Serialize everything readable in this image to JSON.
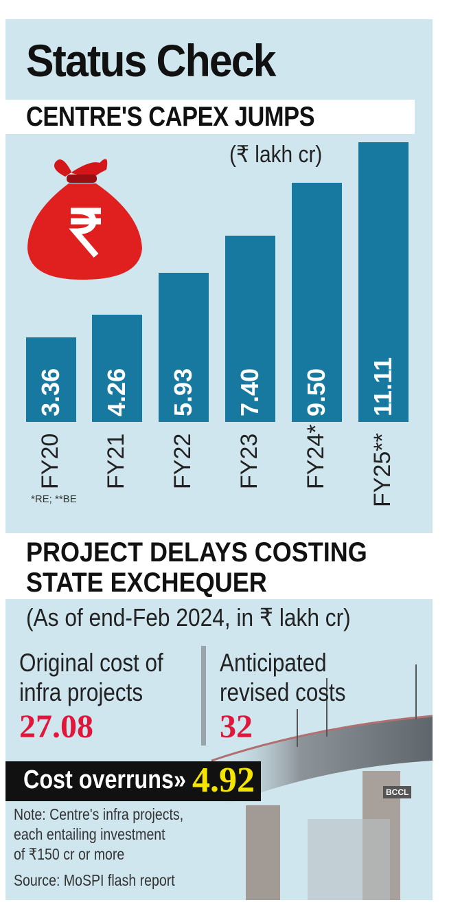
{
  "header": {
    "title": "Status Check",
    "subtitle": "CENTRE'S CAPEX JUMPS",
    "unit": "(₹ lakh cr)"
  },
  "chart_data": {
    "type": "bar",
    "title": "CENTRE'S CAPEX JUMPS",
    "ylabel": "(₹ lakh cr)",
    "categories": [
      "FY20",
      "FY21",
      "FY22",
      "FY23",
      "FY24*",
      "FY25**"
    ],
    "values": [
      3.36,
      4.26,
      5.93,
      7.4,
      9.5,
      11.11
    ],
    "value_labels": [
      "3.36",
      "4.26",
      "5.93",
      "7.40",
      "9.50",
      "11.11"
    ],
    "ylim": [
      0,
      11.11
    ],
    "bar_color": "#1778a0",
    "grid": false,
    "footnote": "*RE; **BE"
  },
  "icons": {
    "money_bag": "money-bag-rupee-icon"
  },
  "section2": {
    "title_line1": "PROJECT DELAYS COSTING",
    "title_line2": "STATE EXCHEQUER",
    "as_of": "(As of end-Feb 2024, in ₹ lakh cr)",
    "original_label_1": "Original cost of",
    "original_label_2": "infra projects",
    "original_value": "27.08",
    "revised_label_1": "Anticipated",
    "revised_label_2": "revised costs",
    "revised_value": "32",
    "overrun_label": "Cost overruns»",
    "overrun_value": "4.92",
    "note_1": "Note: Centre's infra projects,",
    "note_2": "each entailing investment",
    "note_3": "of ₹150 cr or more",
    "source": "Source: MoSPI flash report",
    "credit": "BCCL",
    "value_color": "#e0163a",
    "overrun_color": "#f5e400"
  }
}
